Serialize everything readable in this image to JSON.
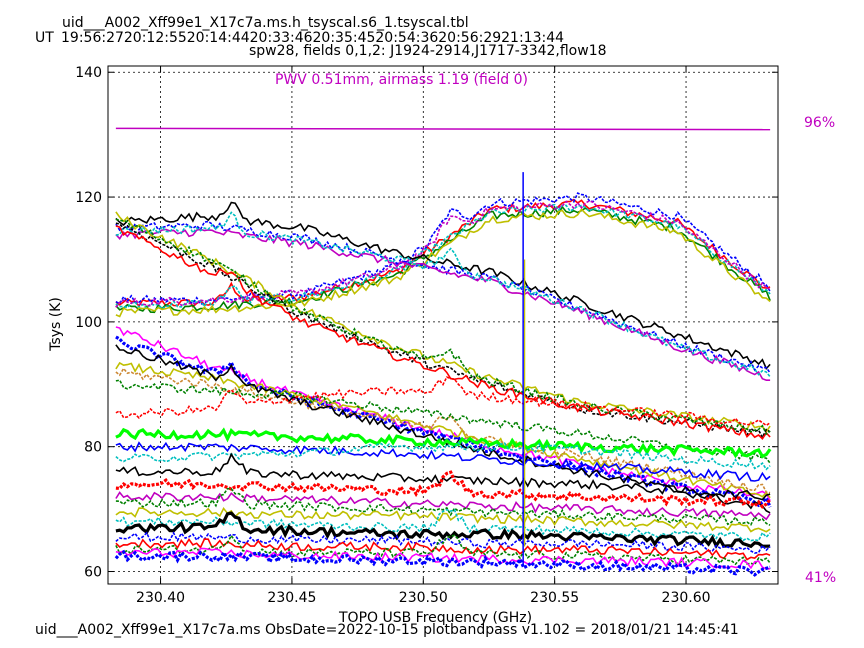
{
  "chart_data": {
    "type": "line",
    "title": "uid___A002_Xff99e1_X17c7a.ms.h_tsyscal.s6_1.tsyscal.tbl",
    "ut_label": "UT",
    "ut_times": "19:56:2720:12:5520:14:4420:33:4620:35:4520:54:3620:56:2921:13:44",
    "subtitle": "spw28,  fields 0,1,2: J1924-2914,J1717-3342,flow18",
    "xlabel": "TOPO USB Frequency (GHz)",
    "ylabel": "Tsys (K)",
    "xlim": [
      230.38,
      230.635
    ],
    "ylim": [
      58,
      141
    ],
    "xticks": [
      230.4,
      230.45,
      230.5,
      230.55,
      230.6
    ],
    "xtick_labels": [
      "230.40",
      "230.45",
      "230.50",
      "230.55",
      "230.60"
    ],
    "yticks": [
      60,
      80,
      100,
      120,
      140
    ],
    "ytick_labels": [
      "60",
      "80",
      "100",
      "120",
      "140"
    ],
    "x_range": [
      230.383,
      230.632
    ],
    "pwv_annotation": "PWV 0.51mm, airmass 1.19 (field 0)",
    "atm_transmission_labels": {
      "top": "96%",
      "bottom": "41%"
    },
    "atm_transmission_curve": {
      "x": [
        230.383,
        230.632
      ],
      "y_tsys_axis": [
        131.0,
        130.8
      ],
      "color": "#c000c0"
    },
    "line_spike": {
      "x": 230.538
    },
    "series_groups": [
      {
        "shape": "hump",
        "color": "#ff0000",
        "y": [
          103,
          103,
          104,
          108,
          118,
          119,
          116,
          105
        ]
      },
      {
        "shape": "hump",
        "color": "#0000ff",
        "y": [
          103.5,
          103.5,
          104.5,
          109,
          119,
          120,
          117,
          105.5
        ]
      },
      {
        "shape": "hump",
        "color": "#008000",
        "y": [
          102,
          102.5,
          103.5,
          107.5,
          117,
          118,
          115,
          104
        ]
      },
      {
        "shape": "hump",
        "color": "#00bfbf",
        "y": [
          102.5,
          103,
          104,
          108,
          117.5,
          118.5,
          115.5,
          104.5
        ]
      },
      {
        "shape": "hump",
        "color": "#bfbf00",
        "y": [
          101.5,
          102,
          103,
          107,
          116.5,
          117.5,
          114.5,
          103
        ]
      },
      {
        "shape": "hump",
        "color": "#c000c0",
        "y": [
          103,
          103.5,
          104.5,
          108.5,
          118,
          119,
          116,
          104.8
        ]
      },
      {
        "shape": "fall",
        "color": "#000000",
        "y": [
          116,
          117,
          115,
          111,
          108,
          103,
          98,
          93
        ]
      },
      {
        "shape": "fall",
        "color": "#0000ff",
        "y": [
          115,
          115.5,
          113.5,
          110,
          107,
          102,
          96.5,
          92
        ]
      },
      {
        "shape": "fall",
        "color": "#c000c0",
        "y": [
          114,
          114.5,
          112.5,
          109.5,
          106.5,
          101.5,
          96,
          91
        ]
      },
      {
        "shape": "fall",
        "color": "#00bfbf",
        "y": [
          114.5,
          115,
          113,
          110,
          107,
          102,
          96,
          91.5
        ]
      },
      {
        "shape": "steep",
        "color": "#bfbf00",
        "y": [
          117,
          110,
          102,
          96,
          91,
          87,
          85,
          83
        ]
      },
      {
        "shape": "steep",
        "color": "#000000",
        "y": [
          116,
          109,
          101,
          95,
          90,
          86,
          84,
          82
        ]
      },
      {
        "shape": "steep",
        "color": "#ff0000",
        "y": [
          115,
          108,
          100,
          94.5,
          89.5,
          86,
          84,
          81.5
        ]
      },
      {
        "shape": "steep",
        "color": "#008000",
        "y": [
          116.5,
          110,
          101.5,
          95.5,
          90.5,
          86.5,
          84.5,
          82.5
        ]
      },
      {
        "shape": "low",
        "color": "#ff00ff",
        "y": [
          99,
          93,
          88,
          84,
          80,
          77,
          74,
          72
        ]
      },
      {
        "shape": "low",
        "color": "#0000ff",
        "y": [
          97,
          92,
          87.5,
          83.5,
          79.5,
          76.5,
          73.5,
          71
        ]
      },
      {
        "shape": "low",
        "color": "#bfbf00",
        "y": [
          93,
          91,
          88,
          84.5,
          81,
          78,
          75,
          72
        ]
      },
      {
        "shape": "low",
        "color": "#cc8833",
        "y": [
          92,
          90,
          87,
          84,
          81,
          78.5,
          76,
          73
        ]
      },
      {
        "shape": "low",
        "color": "#000000",
        "y": [
          96,
          91.5,
          87,
          83,
          79,
          76,
          73,
          70
        ]
      },
      {
        "shape": "low",
        "color": "#008000",
        "y": [
          90,
          89,
          88,
          86,
          84,
          82,
          80,
          78
        ]
      },
      {
        "shape": "low",
        "color": "#00ff00",
        "y": [
          82,
          82,
          81.5,
          81,
          80.5,
          80,
          79.5,
          79
        ]
      },
      {
        "shape": "low",
        "color": "#ff0000",
        "y": [
          85,
          86,
          88,
          89,
          88,
          86.5,
          85,
          83.5
        ]
      },
      {
        "shape": "low",
        "color": "#0000ff",
        "y": [
          80,
          80,
          79.5,
          79,
          78,
          77,
          76,
          75
        ]
      },
      {
        "shape": "low",
        "color": "#00bfbf",
        "y": [
          78,
          78.5,
          79,
          80,
          80,
          79.5,
          78,
          77
        ]
      },
      {
        "shape": "low",
        "color": "#000000",
        "y": [
          76,
          76,
          75.5,
          75,
          74.5,
          74,
          73,
          72
        ]
      },
      {
        "shape": "low",
        "color": "#ff0000",
        "y": [
          74,
          74,
          73.5,
          73,
          72.5,
          72,
          71.5,
          71
        ]
      },
      {
        "shape": "low",
        "color": "#c000c0",
        "y": [
          72,
          72,
          71.5,
          71,
          70.5,
          70,
          69.5,
          69
        ]
      },
      {
        "shape": "low",
        "color": "#008000",
        "y": [
          71,
          71,
          70.5,
          70,
          69.5,
          69,
          68.5,
          68
        ]
      },
      {
        "shape": "low",
        "color": "#bfbf00",
        "y": [
          69.5,
          69.5,
          69,
          69,
          68.5,
          68,
          67.5,
          67
        ]
      },
      {
        "shape": "low",
        "color": "#00bfbf",
        "y": [
          68,
          68,
          67.5,
          67,
          67,
          66.5,
          66,
          65.5
        ]
      },
      {
        "shape": "low",
        "color": "#000000",
        "y": [
          67,
          67,
          66.5,
          66,
          66,
          65.5,
          65,
          64.5
        ]
      },
      {
        "shape": "low",
        "color": "#0000ff",
        "y": [
          65.5,
          65.5,
          65,
          65,
          64.5,
          64.5,
          64,
          63.5
        ]
      },
      {
        "shape": "low",
        "color": "#ff0000",
        "y": [
          64.5,
          64.5,
          64,
          64,
          63.5,
          63.5,
          63,
          62.5
        ]
      },
      {
        "shape": "low",
        "color": "#008000",
        "y": [
          63.5,
          63.5,
          63,
          63,
          62.8,
          62.5,
          62,
          61.5
        ]
      },
      {
        "shape": "low",
        "color": "#ff00ff",
        "y": [
          63,
          63,
          62.5,
          62.3,
          62,
          61.8,
          61.5,
          61
        ]
      },
      {
        "shape": "low",
        "color": "#0000ff",
        "y": [
          62.5,
          62.5,
          62,
          61.8,
          61.5,
          61,
          60.5,
          60
        ]
      }
    ]
  },
  "footer": "uid___A002_Xff99e1_X17c7a.ms  ObsDate=2022-10-15   plotbandpass v1.102 = 2018/01/21 14:45:41"
}
